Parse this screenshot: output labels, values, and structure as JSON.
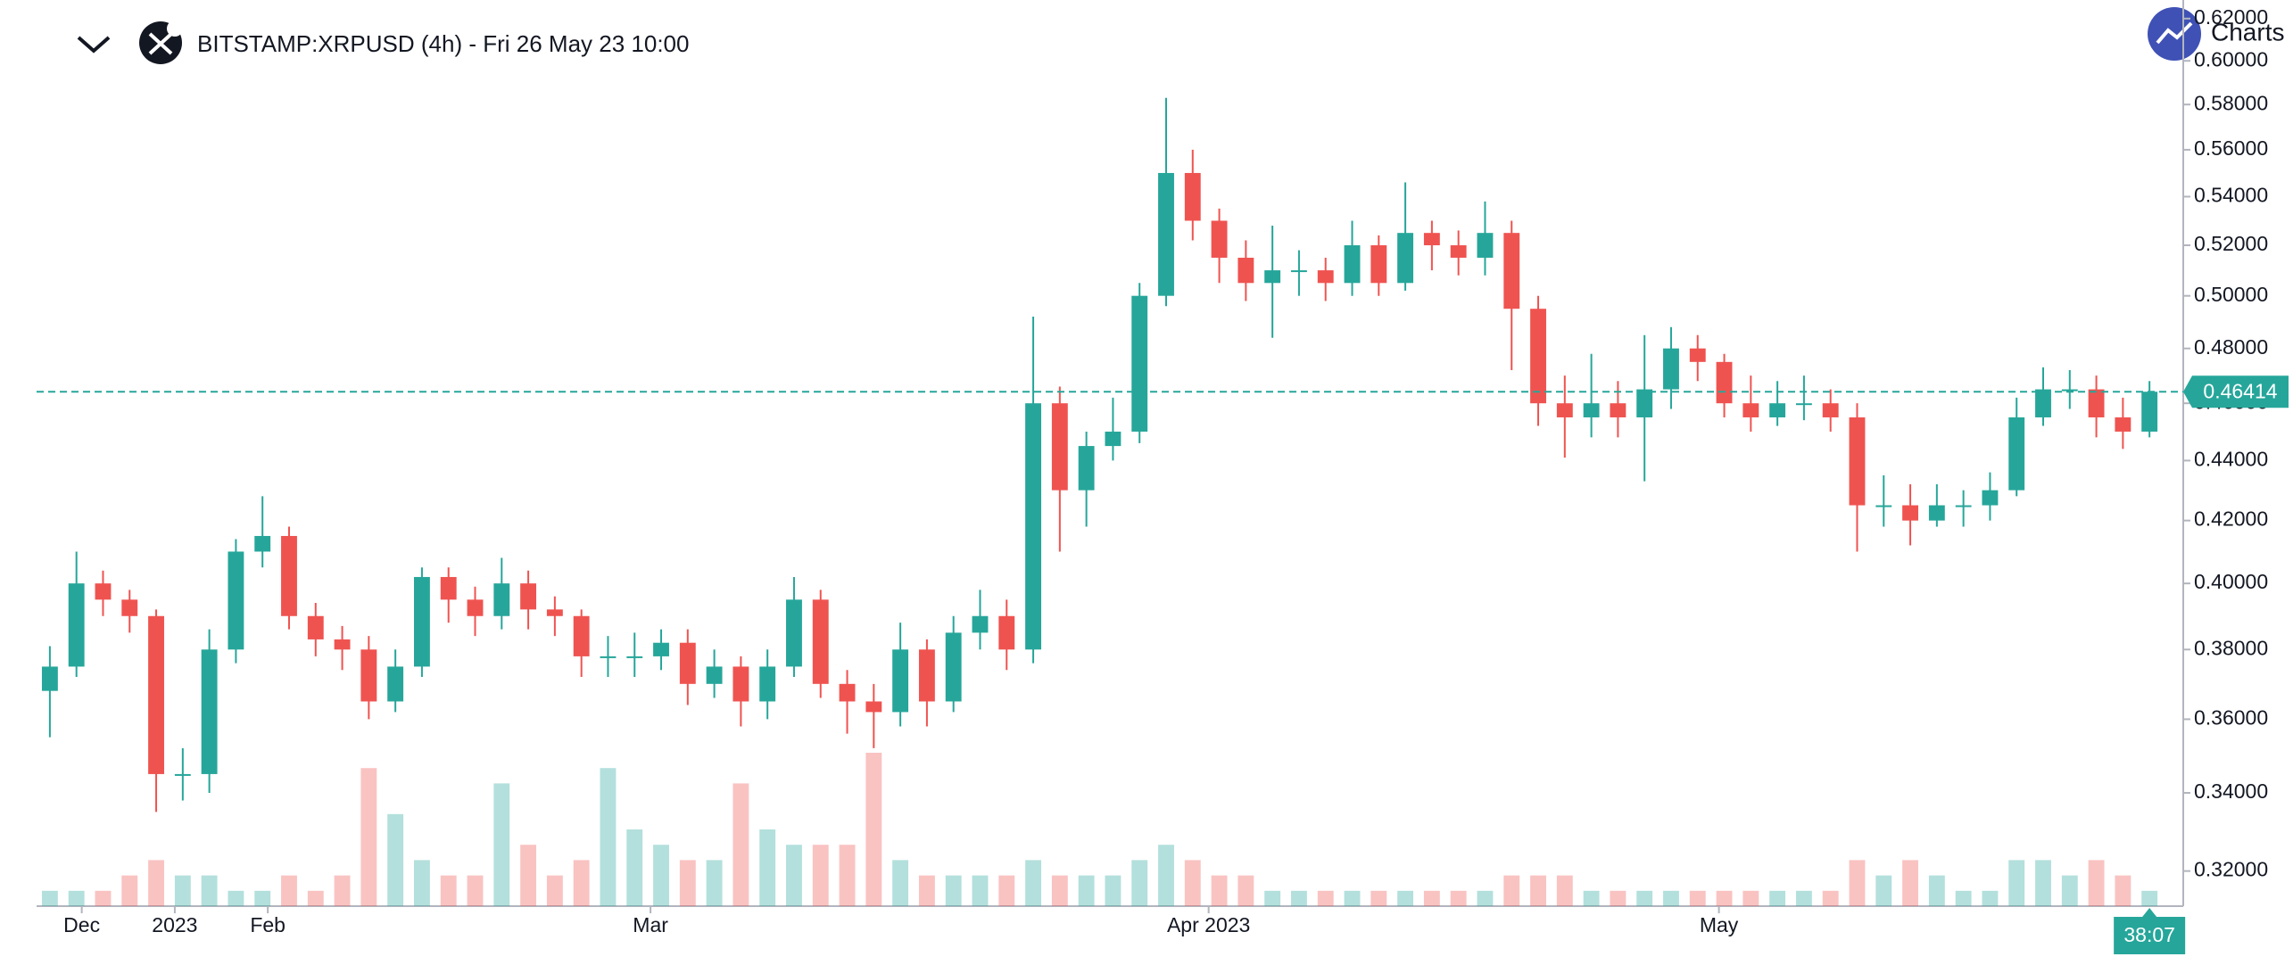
{
  "header": {
    "title": "BITSTAMP:XRPUSD (4h) - Fri 26 May 23 10:00",
    "brand": "Charts"
  },
  "chart_data": {
    "type": "candlestick",
    "log_scale": true,
    "up_color": "#26a69a",
    "down_color": "#ef5350",
    "open": [
      0.368,
      0.375,
      0.4,
      0.395,
      0.39,
      0.345,
      0.345,
      0.38,
      0.41,
      0.415,
      0.39,
      0.383,
      0.38,
      0.365,
      0.375,
      0.402,
      0.395,
      0.39,
      0.4,
      0.392,
      0.39,
      0.378,
      0.378,
      0.378,
      0.382,
      0.37,
      0.375,
      0.365,
      0.375,
      0.395,
      0.37,
      0.365,
      0.362,
      0.38,
      0.365,
      0.385,
      0.39,
      0.38,
      0.46,
      0.43,
      0.445,
      0.45,
      0.5,
      0.55,
      0.53,
      0.515,
      0.505,
      0.51,
      0.51,
      0.505,
      0.52,
      0.505,
      0.525,
      0.52,
      0.515,
      0.525,
      0.495,
      0.46,
      0.455,
      0.46,
      0.455,
      0.465,
      0.48,
      0.475,
      0.46,
      0.455,
      0.46,
      0.46,
      0.455,
      0.425,
      0.425,
      0.42,
      0.425,
      0.425,
      0.43,
      0.455,
      0.465,
      0.465,
      0.455,
      0.45
    ],
    "high": [
      0.381,
      0.41,
      0.404,
      0.398,
      0.392,
      0.352,
      0.386,
      0.414,
      0.428,
      0.418,
      0.394,
      0.387,
      0.384,
      0.38,
      0.405,
      0.405,
      0.399,
      0.408,
      0.404,
      0.396,
      0.392,
      0.384,
      0.385,
      0.386,
      0.386,
      0.38,
      0.378,
      0.38,
      0.402,
      0.398,
      0.374,
      0.37,
      0.388,
      0.383,
      0.39,
      0.398,
      0.395,
      0.492,
      0.466,
      0.45,
      0.462,
      0.505,
      0.583,
      0.56,
      0.535,
      0.522,
      0.528,
      0.518,
      0.515,
      0.53,
      0.524,
      0.546,
      0.53,
      0.526,
      0.538,
      0.53,
      0.5,
      0.47,
      0.478,
      0.468,
      0.485,
      0.488,
      0.485,
      0.478,
      0.47,
      0.468,
      0.47,
      0.465,
      0.46,
      0.435,
      0.432,
      0.432,
      0.43,
      0.436,
      0.462,
      0.473,
      0.472,
      0.47,
      0.462,
      0.468
    ],
    "low": [
      0.355,
      0.372,
      0.39,
      0.385,
      0.335,
      0.338,
      0.34,
      0.376,
      0.405,
      0.386,
      0.378,
      0.374,
      0.36,
      0.362,
      0.372,
      0.388,
      0.384,
      0.386,
      0.386,
      0.384,
      0.372,
      0.372,
      0.372,
      0.374,
      0.364,
      0.366,
      0.358,
      0.36,
      0.372,
      0.366,
      0.356,
      0.352,
      0.358,
      0.358,
      0.362,
      0.38,
      0.374,
      0.376,
      0.41,
      0.418,
      0.44,
      0.446,
      0.496,
      0.522,
      0.505,
      0.498,
      0.484,
      0.5,
      0.498,
      0.5,
      0.5,
      0.502,
      0.51,
      0.508,
      0.508,
      0.472,
      0.452,
      0.441,
      0.448,
      0.448,
      0.433,
      0.458,
      0.468,
      0.455,
      0.45,
      0.452,
      0.454,
      0.45,
      0.41,
      0.418,
      0.412,
      0.418,
      0.418,
      0.42,
      0.428,
      0.452,
      0.458,
      0.448,
      0.444,
      0.448
    ],
    "close": [
      0.375,
      0.4,
      0.395,
      0.39,
      0.345,
      0.345,
      0.38,
      0.41,
      0.415,
      0.39,
      0.383,
      0.38,
      0.365,
      0.375,
      0.402,
      0.395,
      0.39,
      0.4,
      0.392,
      0.39,
      0.378,
      0.378,
      0.378,
      0.382,
      0.37,
      0.375,
      0.365,
      0.375,
      0.395,
      0.37,
      0.365,
      0.362,
      0.38,
      0.365,
      0.385,
      0.39,
      0.38,
      0.46,
      0.43,
      0.445,
      0.45,
      0.5,
      0.55,
      0.53,
      0.515,
      0.505,
      0.51,
      0.51,
      0.505,
      0.52,
      0.505,
      0.525,
      0.52,
      0.515,
      0.525,
      0.495,
      0.46,
      0.455,
      0.46,
      0.455,
      0.465,
      0.48,
      0.475,
      0.46,
      0.455,
      0.46,
      0.46,
      0.455,
      0.425,
      0.425,
      0.42,
      0.425,
      0.425,
      0.43,
      0.455,
      0.465,
      0.465,
      0.455,
      0.45,
      0.46414
    ],
    "volume": [
      1,
      1,
      1,
      2,
      3,
      2,
      2,
      1,
      1,
      2,
      1,
      2,
      9,
      6,
      3,
      2,
      2,
      8,
      4,
      2,
      3,
      9,
      5,
      4,
      3,
      3,
      8,
      5,
      4,
      4,
      4,
      10,
      3,
      2,
      2,
      2,
      2,
      3,
      2,
      2,
      2,
      3,
      4,
      3,
      2,
      2,
      1,
      1,
      1,
      1,
      1,
      1,
      1,
      1,
      1,
      2,
      2,
      2,
      1,
      1,
      1,
      1,
      1,
      1,
      1,
      1,
      1,
      1,
      3,
      2,
      3,
      2,
      1,
      1,
      3,
      3,
      2,
      3,
      2,
      1
    ],
    "xlim": [
      -0.5,
      79.7
    ],
    "xticks": [
      {
        "value": 1.2,
        "label": "Dec"
      },
      {
        "value": 4.7,
        "label": "2023"
      },
      {
        "value": 8.2,
        "label": "Feb"
      },
      {
        "value": 22.6,
        "label": "Mar"
      },
      {
        "value": 43.6,
        "label": "Apr 2023"
      },
      {
        "value": 62.8,
        "label": "May"
      }
    ],
    "ylim": [
      0.3114,
      0.629
    ],
    "yticks": [
      {
        "value": 0.32,
        "label": "0.32000"
      },
      {
        "value": 0.34,
        "label": "0.34000"
      },
      {
        "value": 0.36,
        "label": "0.36000"
      },
      {
        "value": 0.38,
        "label": "0.38000"
      },
      {
        "value": 0.4,
        "label": "0.40000"
      },
      {
        "value": 0.42,
        "label": "0.42000"
      },
      {
        "value": 0.44,
        "label": "0.44000"
      },
      {
        "value": 0.46,
        "label": "0.46000"
      },
      {
        "value": 0.48,
        "label": "0.48000"
      },
      {
        "value": 0.5,
        "label": "0.50000"
      },
      {
        "value": 0.52,
        "label": "0.52000"
      },
      {
        "value": 0.54,
        "label": "0.54000"
      },
      {
        "value": 0.56,
        "label": "0.56000"
      },
      {
        "value": 0.58,
        "label": "0.58000"
      },
      {
        "value": 0.6,
        "label": "0.60000"
      },
      {
        "value": 0.62,
        "label": "0.62000"
      }
    ],
    "price_line": {
      "value": 0.46414,
      "label": "0.46414"
    },
    "countdown": "38:07"
  }
}
